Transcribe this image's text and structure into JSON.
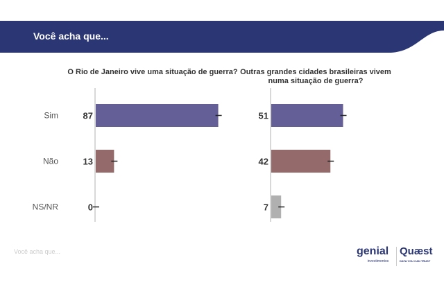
{
  "header": {
    "title": "Você acha que..."
  },
  "footer": {
    "text": "Você acha que...",
    "logos": [
      "genial investimentos",
      "Quaest DATA YOU CAN TRUST"
    ]
  },
  "colors": {
    "banner": "#2b3674",
    "sim": "#655f97",
    "nao": "#946b6a",
    "nsnr": "#b0b0b0"
  },
  "chart_data": [
    {
      "type": "bar",
      "orientation": "horizontal",
      "title": "O Rio de Janeiro vive uma situação de guerra?",
      "categories": [
        "Sim",
        "Não",
        "NS/NR"
      ],
      "values": [
        87,
        13,
        0
      ],
      "error_bars": true,
      "xlim": [
        0,
        100
      ]
    },
    {
      "type": "bar",
      "orientation": "horizontal",
      "title": "Outras grandes cidades brasileiras vivem numa situação de guerra?",
      "categories": [
        "Sim",
        "Não",
        "NS/NR"
      ],
      "values": [
        51,
        42,
        7
      ],
      "error_bars": true,
      "xlim": [
        0,
        100
      ]
    }
  ]
}
